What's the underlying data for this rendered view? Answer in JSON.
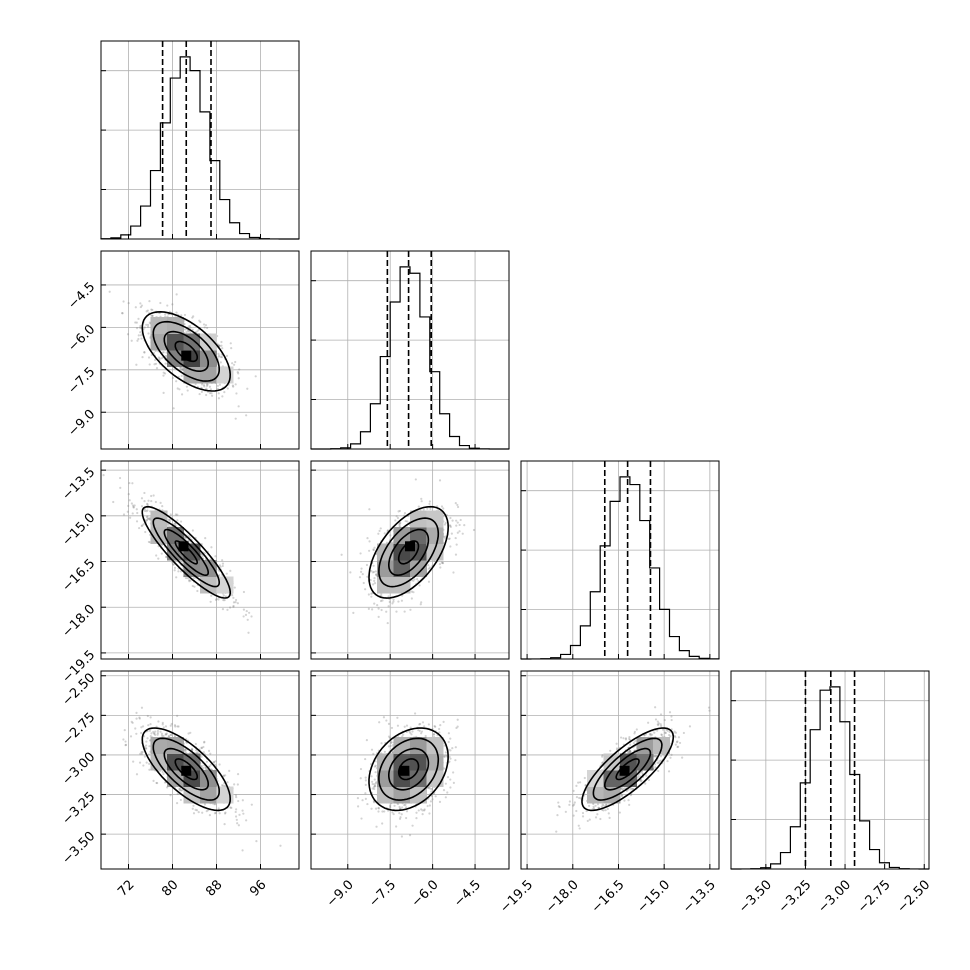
{
  "chart_data": {
    "type": "corner",
    "parameters": [
      {
        "ticks": [
          72,
          80,
          88,
          96
        ],
        "tick_labels": [
          "72",
          "80",
          "88",
          "96"
        ],
        "range": [
          67,
          103
        ],
        "mean": 82.5,
        "std": 4.0,
        "quantiles": [
          78.2,
          82.5,
          87.0
        ]
      },
      {
        "ticks": [
          -9.0,
          -7.5,
          -6.0,
          -4.5
        ],
        "tick_labels": [
          "−9.0",
          "−7.5",
          "−6.0",
          "−4.5"
        ],
        "range": [
          -10.3,
          -3.3
        ],
        "mean": -6.85,
        "std": 0.7,
        "quantiles": [
          -7.6,
          -6.85,
          -6.05
        ]
      },
      {
        "ticks": [
          -19.5,
          -18.0,
          -16.5,
          -15.0,
          -13.5
        ],
        "tick_labels": [
          "−19.5",
          "−18.0",
          "−16.5",
          "−15.0",
          "−13.5"
        ],
        "range": [
          -19.7,
          -13.2
        ],
        "mean": -16.2,
        "std": 0.75,
        "quantiles": [
          -16.95,
          -16.2,
          -15.45
        ]
      },
      {
        "ticks": [
          -3.5,
          -3.25,
          -3.0,
          -2.75,
          -2.5
        ],
        "tick_labels": [
          "−3.50",
          "−3.25",
          "−3.00",
          "−2.75",
          "−2.50"
        ],
        "range": [
          -3.72,
          -2.47
        ],
        "mean": -3.09,
        "std": 0.13,
        "quantiles": [
          -3.25,
          -3.09,
          -2.94
        ]
      }
    ],
    "pairs": [
      {
        "row": 1,
        "col": 0,
        "rho": -0.6,
        "peak": [
          82.5,
          -7.0
        ]
      },
      {
        "row": 2,
        "col": 0,
        "rho": -0.88,
        "peak": [
          82.0,
          -16.0
        ]
      },
      {
        "row": 2,
        "col": 1,
        "rho": 0.55,
        "peak": [
          -6.8,
          -16.0
        ]
      },
      {
        "row": 3,
        "col": 0,
        "rho": -0.72,
        "peak": [
          82.5,
          -3.1
        ]
      },
      {
        "row": 3,
        "col": 1,
        "rho": 0.3,
        "peak": [
          -7.0,
          -3.1
        ]
      },
      {
        "row": 3,
        "col": 2,
        "rho": 0.78,
        "peak": [
          -16.3,
          -3.1
        ]
      }
    ],
    "histogram_bins": 20,
    "contour_levels": [
      0.5,
      1.0,
      1.5,
      2.0
    ],
    "grid": true,
    "quantile_line_style": "dashed",
    "colors": {
      "ink": "#000000",
      "scatter": "#808080",
      "grid": "#b0b0b0"
    }
  }
}
